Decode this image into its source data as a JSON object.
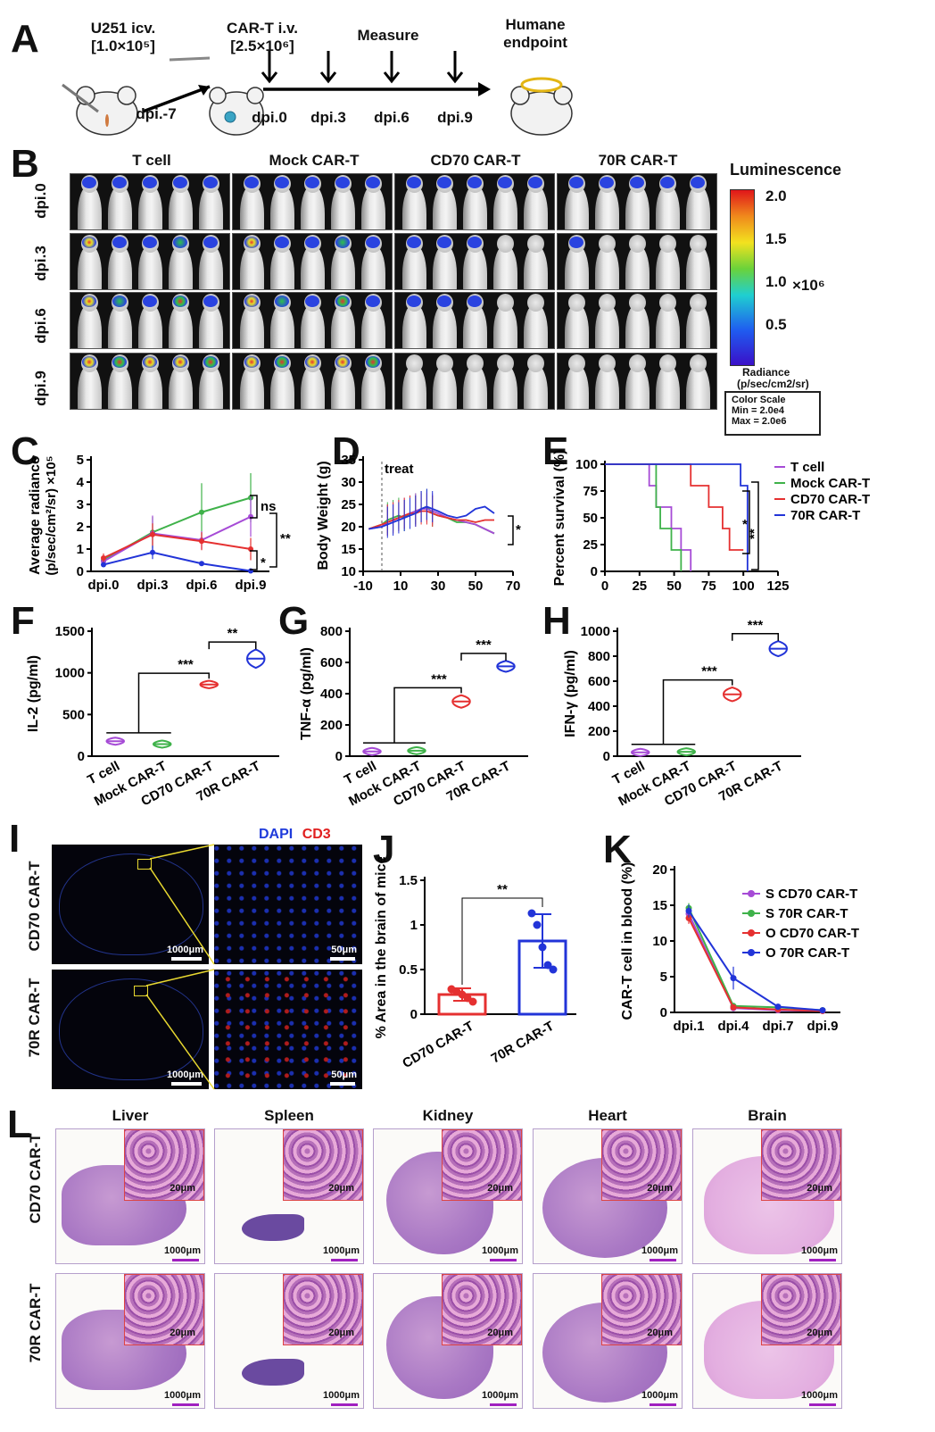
{
  "panel_labels": [
    "A",
    "B",
    "C",
    "D",
    "E",
    "F",
    "G",
    "H",
    "I",
    "J",
    "K",
    "L"
  ],
  "panelA": {
    "u251_line1": "U251 icv.",
    "u251_line2": "[1.0×10⁵]",
    "cart_line1": "CAR-T i.v.",
    "cart_line2": "[2.5×10⁶]",
    "measure": "Measure",
    "endpoint_line1": "Humane",
    "endpoint_line2": "endpoint",
    "dpi_m7": "dpi.-7",
    "dpis": [
      "dpi.0",
      "dpi.3",
      "dpi.6",
      "dpi.9"
    ]
  },
  "panelB": {
    "groups": [
      "T cell",
      "Mock CAR-T",
      "CD70 CAR-T",
      "70R CAR-T"
    ],
    "rows": [
      "dpi.0",
      "dpi.3",
      "dpi.6",
      "dpi.9"
    ],
    "legend_title": "Luminescence",
    "scale_ticks": [
      "2.0",
      "1.5",
      "1.0",
      "0.5"
    ],
    "scale_unit": "×10⁶",
    "radiance_line1": "Radiance",
    "radiance_line2": "(p/sec/cm2/sr)",
    "color_scale_title": "Color Scale",
    "color_scale_min": "Min = 2.0e4",
    "color_scale_max": "Max = 2.0e6"
  },
  "chart_data": [
    {
      "id": "C",
      "type": "line",
      "ylabel_line1": "Average radiance",
      "ylabel_line2": "(p/sec/cm²/sr) ×10⁵",
      "categories": [
        "dpi.0",
        "dpi.3",
        "dpi.6",
        "dpi.9"
      ],
      "ylim": [
        0,
        5
      ],
      "yticks": [
        0,
        1,
        2,
        3,
        4,
        5
      ],
      "series": [
        {
          "color": "#3fb24a",
          "values": [
            0.5,
            1.75,
            2.65,
            3.3
          ],
          "err": [
            0.15,
            0.7,
            1.3,
            1.1
          ]
        },
        {
          "color": "#a64bd6",
          "values": [
            0.45,
            1.7,
            1.4,
            2.45
          ],
          "err": [
            0.15,
            0.8,
            0.4,
            0.9
          ]
        },
        {
          "color": "#e53030",
          "values": [
            0.6,
            1.65,
            1.35,
            1.0
          ],
          "err": [
            0.2,
            0.5,
            0.4,
            0.5
          ]
        },
        {
          "color": "#2234d8",
          "values": [
            0.3,
            0.85,
            0.35,
            0.02
          ],
          "err": [
            0.1,
            0.3,
            0.1,
            0.02
          ]
        }
      ],
      "annotations": [
        "ns",
        "*",
        "**"
      ]
    },
    {
      "id": "D",
      "type": "line",
      "ylabel": "Body Weight (g)",
      "xlim": [
        -10,
        70
      ],
      "xticks": [
        -10,
        10,
        30,
        50,
        70
      ],
      "ylim": [
        10,
        35
      ],
      "yticks": [
        10,
        15,
        20,
        25,
        30,
        35
      ],
      "treat_label": "treat",
      "treat_x": 0,
      "series": [
        {
          "color": "#3fb24a",
          "x": [
            -7,
            0,
            3,
            6,
            9,
            12,
            15,
            18,
            21,
            24,
            27,
            30,
            35,
            40,
            45,
            50,
            55,
            60
          ],
          "y": [
            19.5,
            20.5,
            21.5,
            22,
            22.5,
            22,
            23,
            23.5,
            24,
            24.5,
            23,
            22.5,
            22,
            21,
            21,
            20.5,
            19.5,
            18.5
          ]
        },
        {
          "color": "#a64bd6",
          "x": [
            -7,
            0,
            3,
            6,
            9,
            12,
            15,
            18,
            21,
            24,
            27,
            30,
            35,
            40,
            45,
            50,
            55,
            60
          ],
          "y": [
            19.5,
            20,
            21,
            21.5,
            22,
            22.5,
            23,
            23.5,
            24,
            24,
            23.5,
            23,
            22,
            21.5,
            21,
            20.5,
            19.5,
            18.5
          ]
        },
        {
          "color": "#e53030",
          "x": [
            -7,
            0,
            3,
            6,
            9,
            12,
            15,
            18,
            21,
            24,
            27,
            30,
            35,
            40,
            45,
            50,
            55,
            60
          ],
          "y": [
            19.5,
            20.5,
            21,
            21.5,
            22,
            22.5,
            23,
            23,
            23.5,
            23.5,
            23,
            22.5,
            22,
            21.5,
            21.5,
            21,
            21.5,
            21.5
          ]
        },
        {
          "color": "#2234d8",
          "x": [
            -7,
            0,
            3,
            6,
            9,
            12,
            15,
            18,
            21,
            24,
            27,
            30,
            35,
            40,
            45,
            50,
            55,
            60
          ],
          "y": [
            19.5,
            20,
            20.5,
            21,
            21.5,
            22,
            22.5,
            23,
            24,
            24.5,
            24,
            23.5,
            22.5,
            22,
            22.5,
            24,
            24.5,
            23
          ]
        }
      ],
      "annotation": "*"
    },
    {
      "id": "E",
      "type": "line",
      "ylabel": "Percent survival (%)",
      "xlim": [
        0,
        125
      ],
      "xticks": [
        0,
        25,
        50,
        75,
        100,
        125
      ],
      "ylim": [
        0,
        100
      ],
      "yticks": [
        0,
        25,
        50,
        75,
        100
      ],
      "series": [
        {
          "name": "T cell",
          "color": "#a64bd6",
          "x": [
            0,
            32,
            32,
            37,
            37,
            48,
            48,
            55,
            55,
            62,
            62
          ],
          "y": [
            100,
            100,
            80,
            80,
            60,
            60,
            40,
            40,
            20,
            20,
            0
          ]
        },
        {
          "name": "Mock CAR-T",
          "color": "#3fb24a",
          "x": [
            0,
            37,
            37,
            40,
            40,
            48,
            48,
            55,
            55
          ],
          "y": [
            100,
            100,
            60,
            60,
            40,
            40,
            20,
            20,
            0
          ]
        },
        {
          "name": "CD70 CAR-T",
          "color": "#e53030",
          "x": [
            0,
            62,
            62,
            75,
            75,
            85,
            85,
            90,
            90,
            100
          ],
          "y": [
            100,
            100,
            80,
            80,
            60,
            60,
            40,
            40,
            20,
            20
          ]
        },
        {
          "name": "70R CAR-T",
          "color": "#2234d8",
          "x": [
            0,
            98,
            98,
            103,
            103
          ],
          "y": [
            100,
            100,
            80,
            80,
            0
          ]
        }
      ],
      "annotations": [
        "*",
        "**"
      ]
    },
    {
      "id": "F",
      "type": "violin",
      "ylabel": "IL-2 (pg/ml)",
      "categories": [
        "T cell",
        "Mock CAR-T",
        "CD70 CAR-T",
        "70R CAR-T"
      ],
      "colors": [
        "#a64bd6",
        "#3fb24a",
        "#e53030",
        "#2234d8"
      ],
      "values": [
        180,
        145,
        860,
        1170
      ],
      "spread": [
        15,
        25,
        45,
        110
      ],
      "ylim": [
        0,
        1500
      ],
      "yticks": [
        0,
        500,
        1000,
        1500
      ],
      "sig": [
        "***",
        "**"
      ]
    },
    {
      "id": "G",
      "type": "violin",
      "ylabel": "TNF-α (pg/ml)",
      "categories": [
        "T cell",
        "Mock CAR-T",
        "CD70 CAR-T",
        "70R CAR-T"
      ],
      "colors": [
        "#a64bd6",
        "#3fb24a",
        "#e53030",
        "#2234d8"
      ],
      "values": [
        30,
        35,
        350,
        575
      ],
      "spread": [
        8,
        10,
        40,
        35
      ],
      "ylim": [
        0,
        800
      ],
      "yticks": [
        0,
        200,
        400,
        600,
        800
      ],
      "sig": [
        "***",
        "***"
      ]
    },
    {
      "id": "H",
      "type": "violin",
      "ylabel": "IFN-γ (pg/ml)",
      "categories": [
        "T cell",
        "Mock CAR-T",
        "CD70 CAR-T",
        "70R CAR-T"
      ],
      "colors": [
        "#a64bd6",
        "#3fb24a",
        "#e53030",
        "#2234d8"
      ],
      "values": [
        30,
        35,
        495,
        860
      ],
      "spread": [
        8,
        10,
        55,
        60
      ],
      "ylim": [
        0,
        1000
      ],
      "yticks": [
        0,
        200,
        400,
        600,
        800,
        1000
      ],
      "sig": [
        "***",
        "***"
      ]
    },
    {
      "id": "J",
      "type": "bar",
      "ylabel": "% Area in the brain of mice",
      "categories": [
        "CD70 CAR-T",
        "70R CAR-T"
      ],
      "colors": [
        "#e53030",
        "#2234d8"
      ],
      "values": [
        0.22,
        0.82
      ],
      "err": [
        0.07,
        0.3
      ],
      "points": [
        [
          0.28,
          0.25,
          0.22,
          0.18,
          0.14
        ],
        [
          1.13,
          1.0,
          0.75,
          0.55,
          0.5
        ]
      ],
      "ylim": [
        0,
        1.5
      ],
      "yticks": [
        0.0,
        0.5,
        1.0,
        1.5
      ],
      "sig": "**"
    },
    {
      "id": "K",
      "type": "line",
      "ylabel": "CAR-T cell in blood (%)",
      "categories": [
        "dpi.1",
        "dpi.4",
        "dpi.7",
        "dpi.9"
      ],
      "ylim": [
        0,
        20
      ],
      "yticks": [
        0,
        5,
        10,
        15,
        20
      ],
      "series": [
        {
          "name": "S CD70 CAR-T",
          "color": "#a64bd6",
          "values": [
            13.8,
            0.6,
            0.3,
            0.2
          ],
          "err": [
            0.8,
            0.2,
            0.1,
            0.1
          ]
        },
        {
          "name": "S 70R CAR-T",
          "color": "#3fb24a",
          "values": [
            14.6,
            0.9,
            0.7,
            0.3
          ],
          "err": [
            0.7,
            0.3,
            0.2,
            0.1
          ]
        },
        {
          "name": "O CD70 CAR-T",
          "color": "#e53030",
          "values": [
            13.2,
            0.7,
            0.4,
            0.2
          ],
          "err": [
            0.8,
            0.2,
            0.1,
            0.1
          ]
        },
        {
          "name": "O 70R CAR-T",
          "color": "#2234d8",
          "values": [
            14.2,
            4.8,
            0.8,
            0.3
          ],
          "err": [
            0.9,
            1.6,
            0.3,
            0.1
          ]
        }
      ]
    }
  ],
  "panelI": {
    "legend_dapi": "DAPI",
    "legend_cd3": "CD3",
    "rows": [
      "CD70 CAR-T",
      "70R CAR-T"
    ],
    "scale_large": "1000μm",
    "scale_small": "50μm",
    "colors": {
      "dapi": "#1f3bdb",
      "cd3": "#e01f1f"
    }
  },
  "panelL": {
    "organs": [
      "Liver",
      "Spleen",
      "Kidney",
      "Heart",
      "Brain"
    ],
    "rows": [
      "CD70 CAR-T",
      "70R CAR-T"
    ],
    "scale_large": "1000μm",
    "scale_inset": "20μm"
  }
}
